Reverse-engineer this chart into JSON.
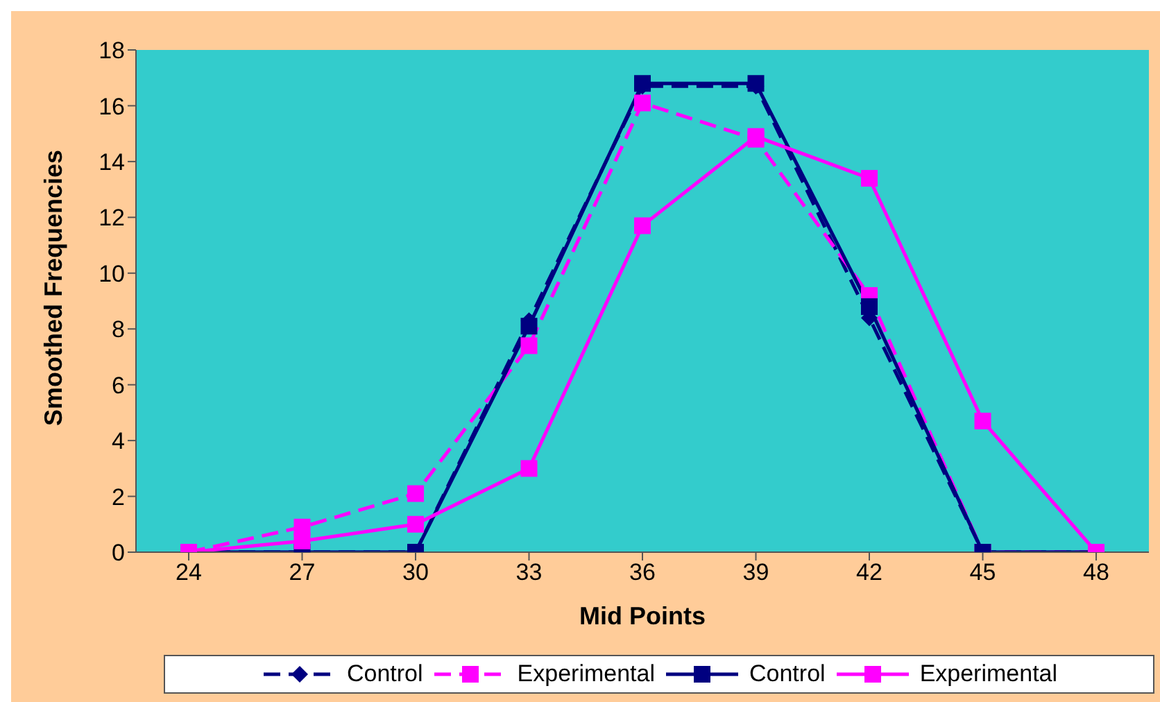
{
  "chart_data": {
    "type": "line",
    "xlabel": "Mid Points",
    "ylabel": "Smoothed Frequencies",
    "categories": [
      "24",
      "27",
      "30",
      "33",
      "36",
      "39",
      "42",
      "45",
      "48"
    ],
    "ylim": [
      0,
      18
    ],
    "yticks": [
      0,
      2,
      4,
      6,
      8,
      10,
      12,
      14,
      16,
      18
    ],
    "grid": false,
    "legend": "bottom",
    "series": [
      {
        "name": "Control",
        "color": "#000080",
        "marker": "diamond",
        "line_style": "dashed",
        "values": [
          0,
          0,
          0,
          8.3,
          16.7,
          16.7,
          8.4,
          0,
          0
        ]
      },
      {
        "name": "Experimental",
        "color": "#ff00ff",
        "marker": "square",
        "line_style": "dashed",
        "values": [
          0,
          0.9,
          2.1,
          7.4,
          16.1,
          14.8,
          9.2,
          0,
          0
        ]
      },
      {
        "name": "Control",
        "color": "#000080",
        "marker": "square",
        "line_style": "solid",
        "values": [
          0,
          0,
          0,
          8.1,
          16.8,
          16.8,
          8.8,
          0,
          0
        ]
      },
      {
        "name": "Experimental",
        "color": "#ff00ff",
        "marker": "square",
        "line_style": "solid",
        "values": [
          0,
          0.4,
          1.0,
          3.0,
          11.7,
          14.9,
          13.4,
          4.7,
          0
        ]
      }
    ]
  }
}
